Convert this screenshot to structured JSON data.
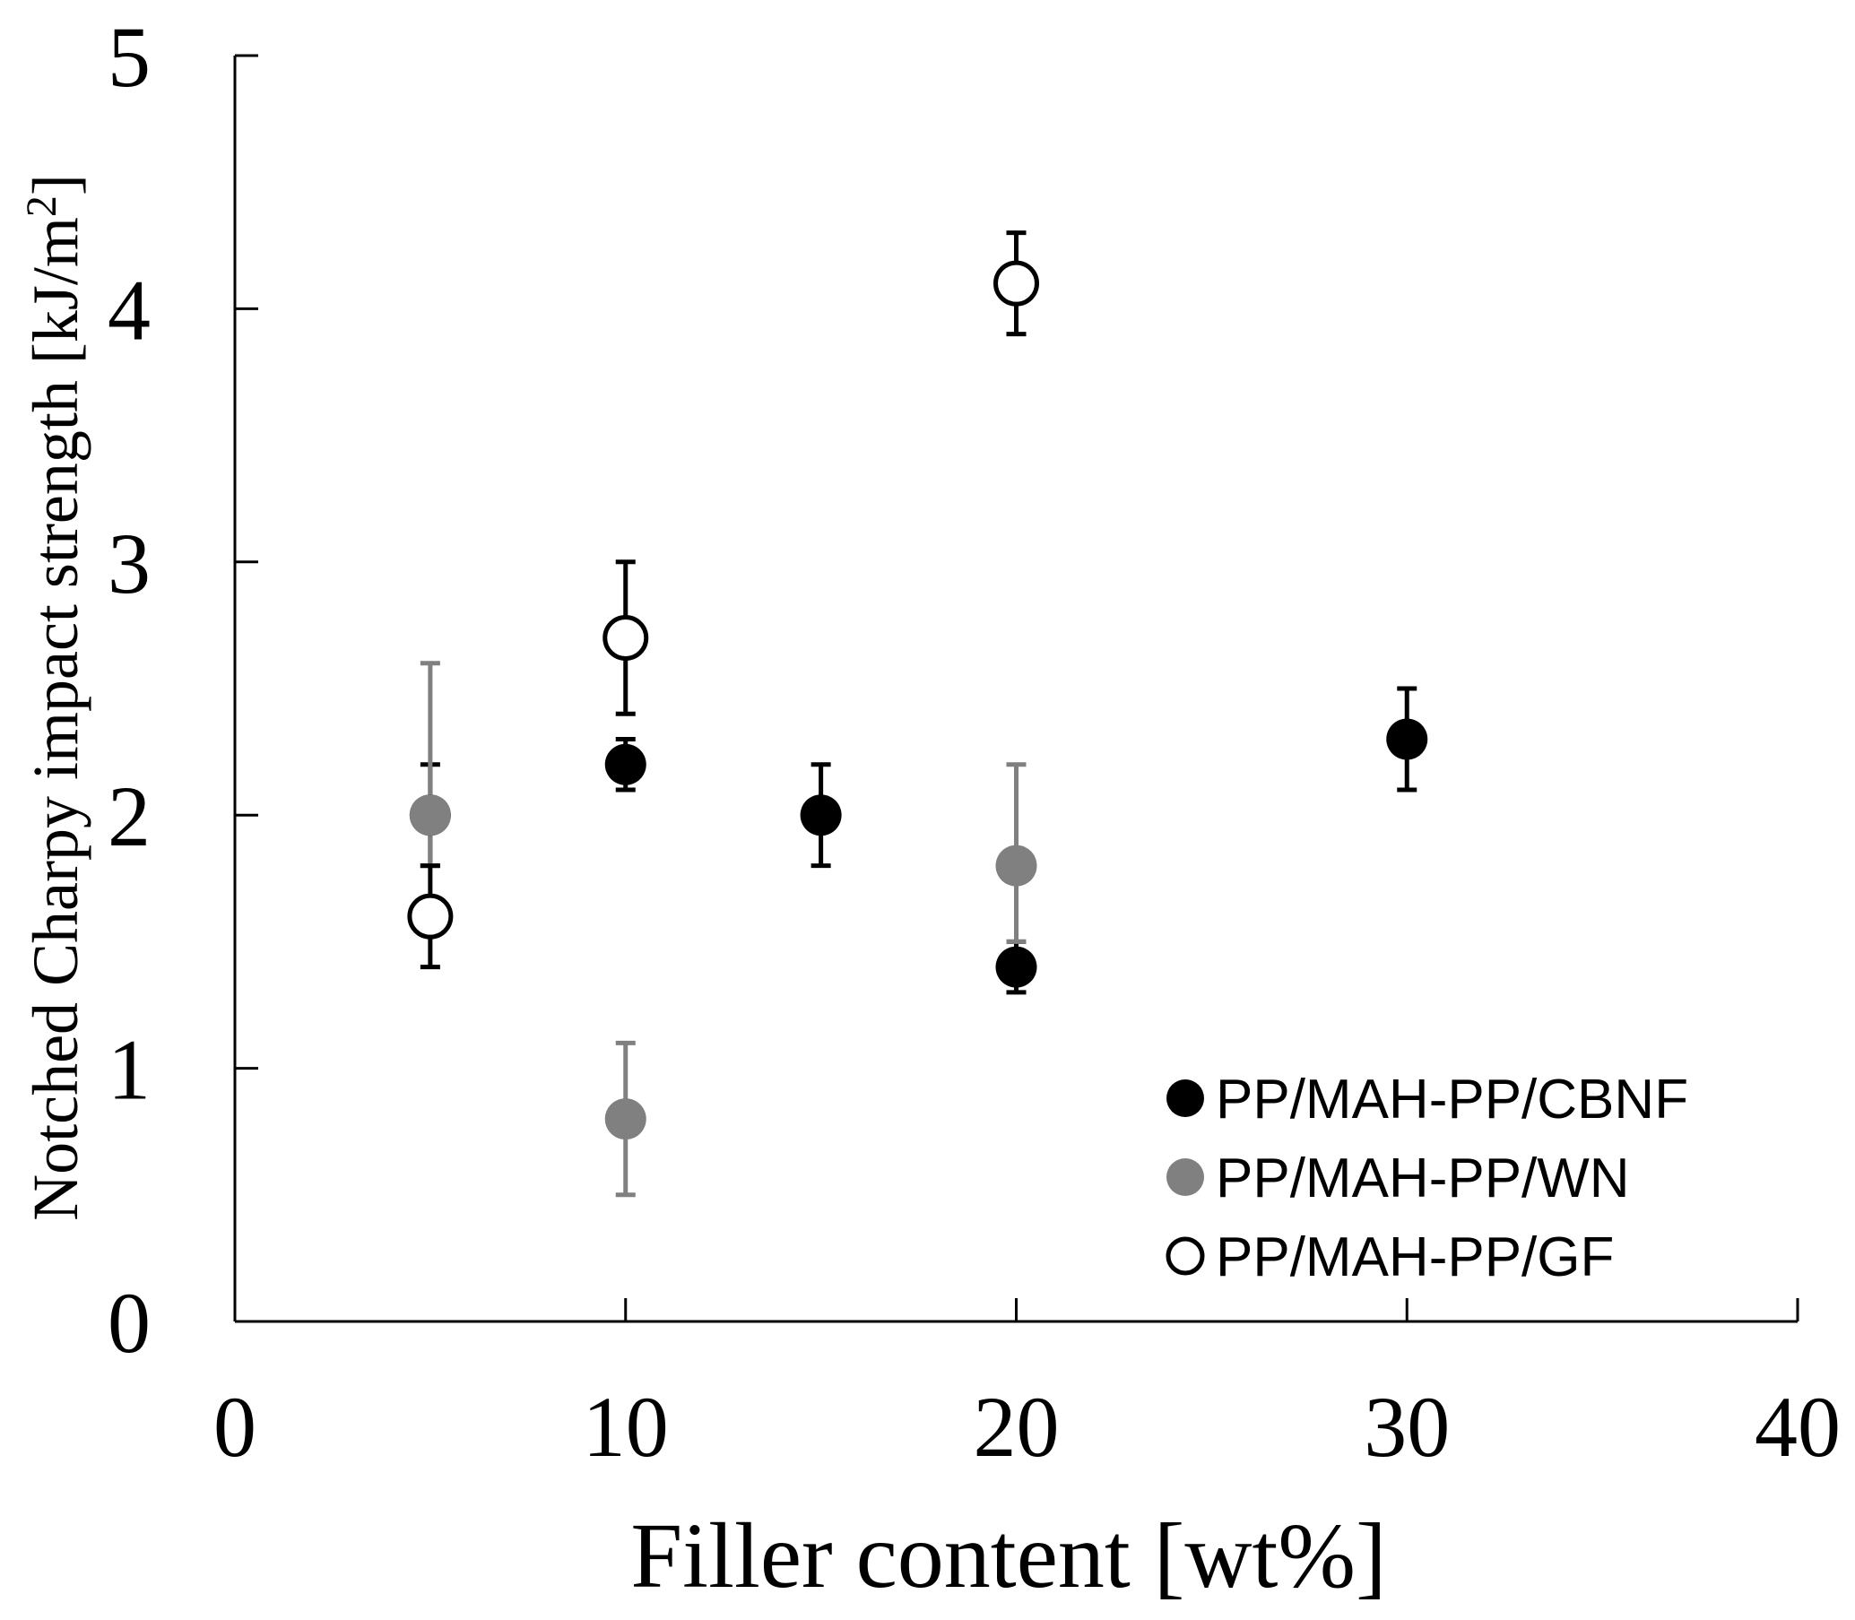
{
  "chart_data": {
    "type": "scatter",
    "title": "",
    "xlabel": "Filler content [wt%]",
    "ylabel": "Notched Charpy impact strength [kJ/m",
    "ylabel_superscript": "2",
    "ylabel_close": "]",
    "xlim": [
      0,
      40
    ],
    "ylim": [
      0,
      5
    ],
    "xticks": [
      0,
      10,
      20,
      30,
      40
    ],
    "yticks": [
      0,
      1,
      2,
      3,
      4,
      5
    ],
    "grid": false,
    "legend_position": "bottom-right",
    "series": [
      {
        "name": "PP/MAH-PP/CBNF",
        "marker": "filled-circle",
        "color": "#000000",
        "points": [
          {
            "x": 5,
            "y": 2.0,
            "err_low": 0.2,
            "err_high": 0.2
          },
          {
            "x": 10,
            "y": 2.2,
            "err_low": 0.1,
            "err_high": 0.1
          },
          {
            "x": 15,
            "y": 2.0,
            "err_low": 0.2,
            "err_high": 0.2
          },
          {
            "x": 20,
            "y": 1.4,
            "err_low": 0.1,
            "err_high": 0.1
          },
          {
            "x": 30,
            "y": 2.3,
            "err_low": 0.2,
            "err_high": 0.2
          }
        ]
      },
      {
        "name": "PP/MAH-PP/WN",
        "marker": "filled-circle",
        "color": "#808080",
        "points": [
          {
            "x": 5,
            "y": 2.0,
            "err_low": 0.2,
            "err_high": 0.6
          },
          {
            "x": 10,
            "y": 0.8,
            "err_low": 0.3,
            "err_high": 0.3
          },
          {
            "x": 20,
            "y": 1.8,
            "err_low": 0.3,
            "err_high": 0.4
          }
        ]
      },
      {
        "name": "PP/MAH-PP/GF",
        "marker": "open-circle",
        "color": "#000000",
        "points": [
          {
            "x": 5,
            "y": 1.6,
            "err_low": 0.2,
            "err_high": 0.2
          },
          {
            "x": 10,
            "y": 2.7,
            "err_low": 0.3,
            "err_high": 0.3
          },
          {
            "x": 20,
            "y": 4.1,
            "err_low": 0.2,
            "err_high": 0.2
          }
        ]
      }
    ]
  }
}
